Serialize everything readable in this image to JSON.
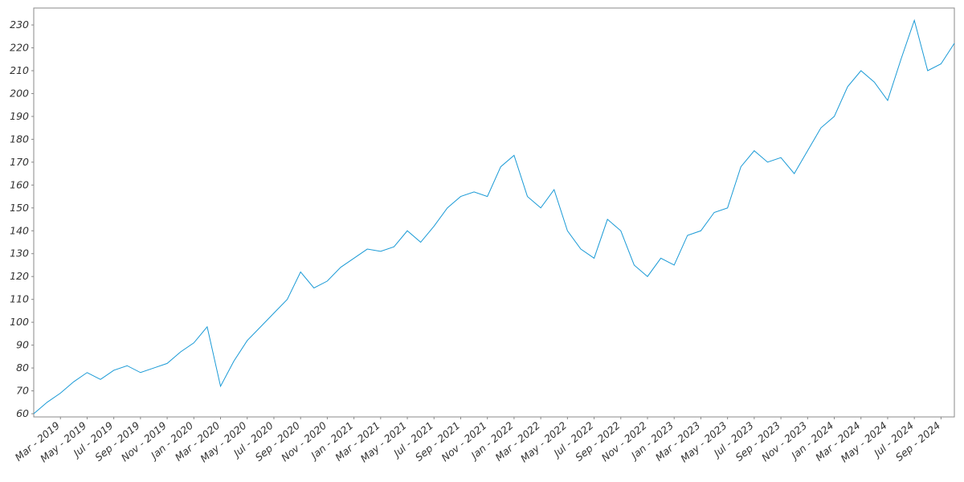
{
  "chart_data": {
    "type": "line",
    "x": [
      "2019-01",
      "2019-02",
      "2019-03",
      "2019-04",
      "2019-05",
      "2019-06",
      "2019-07",
      "2019-08",
      "2019-09",
      "2019-10",
      "2019-11",
      "2019-12",
      "2020-01",
      "2020-02",
      "2020-03",
      "2020-04",
      "2020-05",
      "2020-06",
      "2020-07",
      "2020-08",
      "2020-09",
      "2020-10",
      "2020-11",
      "2020-12",
      "2021-01",
      "2021-02",
      "2021-03",
      "2021-04",
      "2021-05",
      "2021-06",
      "2021-07",
      "2021-08",
      "2021-09",
      "2021-10",
      "2021-11",
      "2021-12",
      "2022-01",
      "2022-02",
      "2022-03",
      "2022-04",
      "2022-05",
      "2022-06",
      "2022-07",
      "2022-08",
      "2022-09",
      "2022-10",
      "2022-11",
      "2022-12",
      "2023-01",
      "2023-02",
      "2023-03",
      "2023-04",
      "2023-05",
      "2023-06",
      "2023-07",
      "2023-08",
      "2023-09",
      "2023-10",
      "2023-11",
      "2023-12",
      "2024-01",
      "2024-02",
      "2024-03",
      "2024-04",
      "2024-05",
      "2024-06",
      "2024-07",
      "2024-08",
      "2024-09",
      "2024-10"
    ],
    "series": [
      {
        "color": "#1a9ad6",
        "values": [
          60,
          65,
          69,
          74,
          78,
          75,
          79,
          81,
          78,
          80,
          82,
          87,
          91,
          98,
          72,
          83,
          92,
          98,
          104,
          110,
          122,
          115,
          118,
          124,
          128,
          132,
          131,
          133,
          140,
          135,
          142,
          150,
          155,
          157,
          155,
          168,
          173,
          155,
          150,
          158,
          140,
          132,
          128,
          145,
          140,
          125,
          120,
          128,
          125,
          138,
          140,
          148,
          150,
          168,
          175,
          170,
          172,
          165,
          175,
          185,
          190,
          203,
          210,
          205,
          197,
          215,
          232,
          210,
          213,
          222
        ]
      }
    ],
    "xlim": [
      "2019-01",
      "2024-10"
    ],
    "ylim": [
      58.6,
      237.4
    ],
    "yticks": [
      60,
      70,
      80,
      90,
      100,
      110,
      120,
      130,
      140,
      150,
      160,
      170,
      180,
      190,
      200,
      210,
      220,
      230
    ],
    "xticks": [
      {
        "value": "2019-03",
        "label": "Mar - 2019"
      },
      {
        "value": "2019-05",
        "label": "May - 2019"
      },
      {
        "value": "2019-07",
        "label": "Jul - 2019"
      },
      {
        "value": "2019-09",
        "label": "Sep - 2019"
      },
      {
        "value": "2019-11",
        "label": "Nov - 2019"
      },
      {
        "value": "2020-01",
        "label": "Jan - 2020"
      },
      {
        "value": "2020-03",
        "label": "Mar - 2020"
      },
      {
        "value": "2020-05",
        "label": "May - 2020"
      },
      {
        "value": "2020-07",
        "label": "Jul - 2020"
      },
      {
        "value": "2020-09",
        "label": "Sep - 2020"
      },
      {
        "value": "2020-11",
        "label": "Nov - 2020"
      },
      {
        "value": "2021-01",
        "label": "Jan - 2021"
      },
      {
        "value": "2021-03",
        "label": "Mar - 2021"
      },
      {
        "value": "2021-05",
        "label": "May - 2021"
      },
      {
        "value": "2021-07",
        "label": "Jul - 2021"
      },
      {
        "value": "2021-09",
        "label": "Sep - 2021"
      },
      {
        "value": "2021-11",
        "label": "Nov - 2021"
      },
      {
        "value": "2022-01",
        "label": "Jan - 2022"
      },
      {
        "value": "2022-03",
        "label": "Mar - 2022"
      },
      {
        "value": "2022-05",
        "label": "May - 2022"
      },
      {
        "value": "2022-07",
        "label": "Jul - 2022"
      },
      {
        "value": "2022-09",
        "label": "Sep - 2022"
      },
      {
        "value": "2022-11",
        "label": "Nov - 2022"
      },
      {
        "value": "2023-01",
        "label": "Jan - 2023"
      },
      {
        "value": "2023-03",
        "label": "Mar - 2023"
      },
      {
        "value": "2023-05",
        "label": "May - 2023"
      },
      {
        "value": "2023-07",
        "label": "Jul - 2023"
      },
      {
        "value": "2023-09",
        "label": "Sep - 2023"
      },
      {
        "value": "2023-11",
        "label": "Nov - 2023"
      },
      {
        "value": "2024-01",
        "label": "Jan - 2024"
      },
      {
        "value": "2024-03",
        "label": "Mar - 2024"
      },
      {
        "value": "2024-05",
        "label": "May - 2024"
      },
      {
        "value": "2024-07",
        "label": "Jul - 2024"
      },
      {
        "value": "2024-09",
        "label": "Sep - 2024"
      }
    ],
    "grid": false
  }
}
